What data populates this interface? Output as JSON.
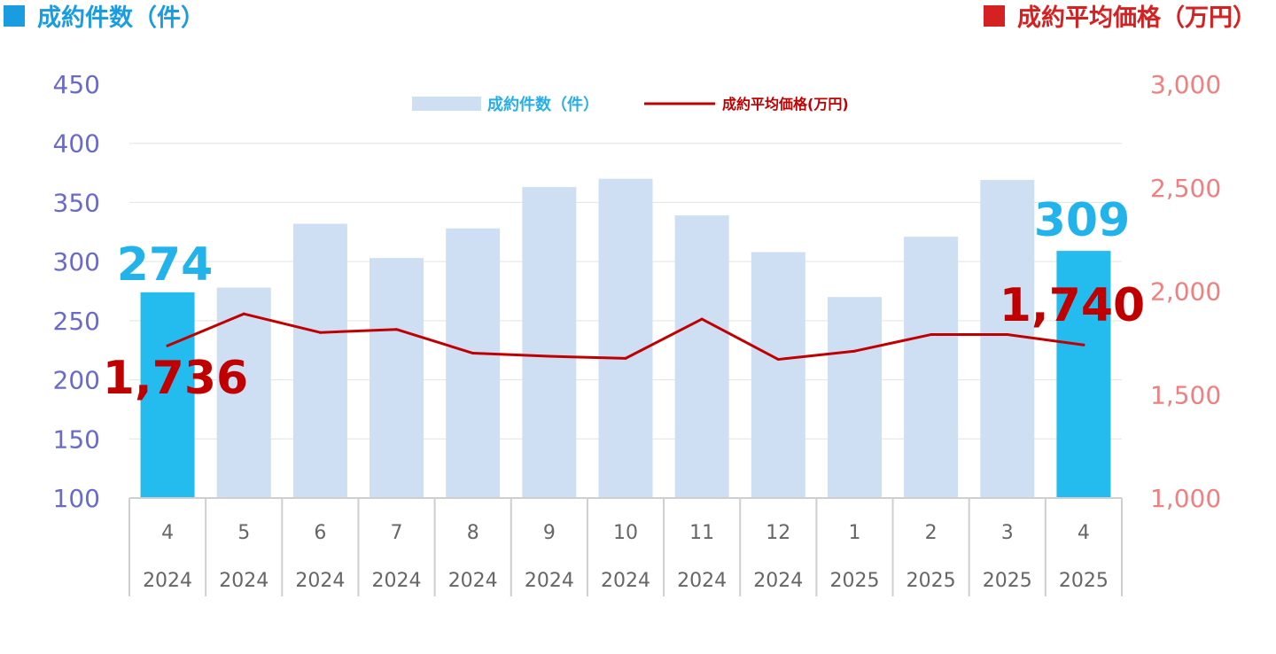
{
  "header": {
    "left_title": "成約件数（件）",
    "right_title": "成約平均価格（万円）",
    "left_marker_color": "#1a9de0",
    "right_marker_color": "#d52121"
  },
  "legend": {
    "bars_label": "成約件数（件）",
    "line_label": "成約平均価格(万円)"
  },
  "chart_data": {
    "type": "bar",
    "x": {
      "months": [
        "4",
        "5",
        "6",
        "7",
        "8",
        "9",
        "10",
        "11",
        "12",
        "1",
        "2",
        "3",
        "4"
      ],
      "years": [
        "2024",
        "2024",
        "2024",
        "2024",
        "2024",
        "2024",
        "2024",
        "2024",
        "2024",
        "2025",
        "2025",
        "2025",
        "2025"
      ]
    },
    "series": [
      {
        "name": "成約件数（件）",
        "type": "bar",
        "axis": "left",
        "values": [
          274,
          278,
          332,
          303,
          328,
          363,
          370,
          339,
          308,
          270,
          321,
          369,
          309
        ],
        "highlight_indices": [
          0,
          12
        ],
        "color": "#cfdff3",
        "highlight_color": "#24bbef"
      },
      {
        "name": "成約平均価格(万円)",
        "type": "line",
        "axis": "right",
        "values": [
          1736,
          1890,
          1800,
          1815,
          1700,
          1685,
          1675,
          1865,
          1670,
          1710,
          1790,
          1790,
          1740
        ],
        "color": "#c00000"
      }
    ],
    "y_left": {
      "range": [
        100,
        450
      ],
      "ticks": [
        "450",
        "400",
        "350",
        "300",
        "250",
        "200",
        "150",
        "100"
      ],
      "color": "#6a6acb"
    },
    "y_right": {
      "range": [
        1000,
        3000
      ],
      "ticks": [
        "3,000",
        "2,500",
        "2,000",
        "1,500",
        "1,000"
      ],
      "color": "#f07f80"
    },
    "callouts": {
      "first_count": "274",
      "last_count": "309",
      "first_price": "1,736",
      "last_price": "1,740"
    },
    "grid": true,
    "legend_position": "top-center"
  }
}
